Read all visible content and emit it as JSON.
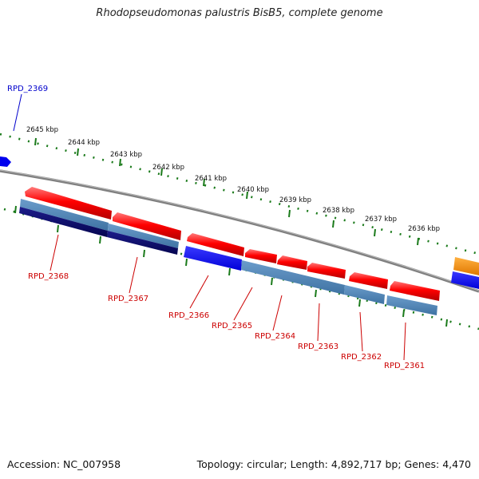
{
  "title": "Rhodopseudomonas palustris BisB5, complete genome",
  "footer": {
    "accession": "Accession: NC_007958",
    "stats": "Topology: circular; Length: 4,892,717 bp; Genes: 4,470"
  },
  "ruler": {
    "labels": [
      "2645 kbp",
      "2644 kbp",
      "2643 kbp",
      "2642 kbp",
      "2641 kbp",
      "2640 kbp",
      "2639 kbp",
      "2638 kbp",
      "2637 kbp",
      "2636 kbp"
    ]
  },
  "genes": [
    {
      "id": "RPD_2369",
      "color": "#0000cc"
    },
    {
      "id": "RPD_2368",
      "color": "#cc0000"
    },
    {
      "id": "RPD_2367",
      "color": "#cc0000"
    },
    {
      "id": "RPD_2366",
      "color": "#cc0000"
    },
    {
      "id": "RPD_2365",
      "color": "#cc0000"
    },
    {
      "id": "RPD_2364",
      "color": "#cc0000"
    },
    {
      "id": "RPD_2363",
      "color": "#cc0000"
    },
    {
      "id": "RPD_2362",
      "color": "#cc0000"
    },
    {
      "id": "RPD_2361",
      "color": "#cc0000"
    }
  ],
  "colors": {
    "cds_red": "#ff0000",
    "cds_blue": "#0000ff",
    "steelblue": "#4682b4",
    "navy": "#0a0a6e",
    "orange": "#ff8c00",
    "ruler_green": "#1a7a1a",
    "backbone_gray": "#808080"
  }
}
